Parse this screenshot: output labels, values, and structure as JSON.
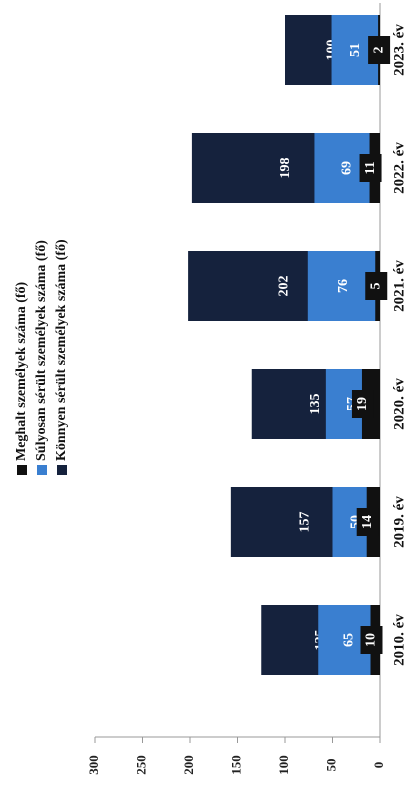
{
  "chart_data": {
    "type": "bar",
    "stacked": true,
    "categories": [
      "2010. év",
      "2019. év",
      "2020. év",
      "2021. év",
      "2022. év",
      "2023. év"
    ],
    "series": [
      {
        "name": "Könnyen sérült személyek száma (fő)",
        "color": "#15223d",
        "values": [
          125,
          157,
          135,
          202,
          198,
          100
        ]
      },
      {
        "name": "Súlyosan sérült személyek száma (fő)",
        "color": "#3a7fd0",
        "values": [
          65,
          50,
          57,
          76,
          69,
          51
        ]
      },
      {
        "name": "Meghalt személyek száma (fő)",
        "color": "#111111",
        "values": [
          10,
          14,
          19,
          5,
          11,
          2
        ]
      }
    ],
    "ylim": [
      0,
      300
    ],
    "yticks": [
      0,
      50,
      100,
      150,
      200,
      250,
      300
    ]
  }
}
